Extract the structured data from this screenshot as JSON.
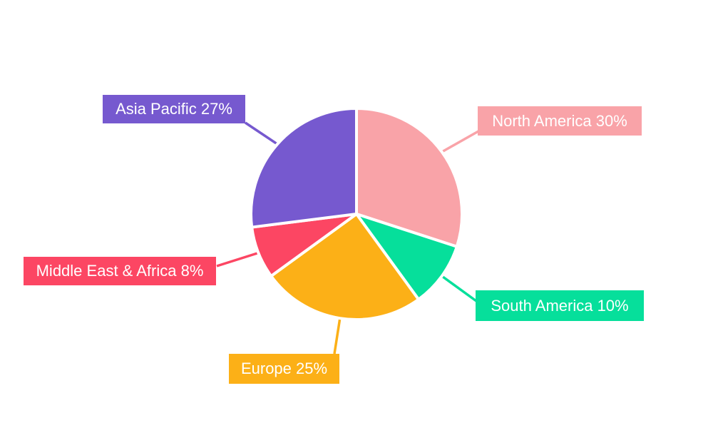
{
  "chart_data": {
    "type": "pie",
    "title": "",
    "categories": [
      "North America",
      "South America",
      "Europe",
      "Middle East & Africa",
      "Asia Pacific"
    ],
    "values": [
      30,
      10,
      25,
      8,
      27
    ],
    "start_angle_deg": 0,
    "direction": "clockwise",
    "label_style": "colored-boxes-with-leader-lines",
    "text_color": "#FFFFFF",
    "background": "#FFFFFF",
    "slice_gap_color": "#FFFFFF",
    "slices": [
      {
        "id": "north-america",
        "label": "North America",
        "value": 30,
        "color": "#F9A3A8",
        "label_text": "North America 30%"
      },
      {
        "id": "south-america",
        "label": "South America",
        "value": 10,
        "color": "#06DF9B",
        "label_text": "South America 10%"
      },
      {
        "id": "europe",
        "label": "Europe",
        "value": 25,
        "color": "#FCB017",
        "label_text": "Europe 25%"
      },
      {
        "id": "middle-east-africa",
        "label": "Middle East & Africa",
        "value": 8,
        "color": "#FC4663",
        "label_text": "Middle East & Africa 8%"
      },
      {
        "id": "asia-pacific",
        "label": "Asia Pacific",
        "value": 27,
        "color": "#7659CF",
        "label_text": "Asia Pacific 27%"
      }
    ]
  }
}
